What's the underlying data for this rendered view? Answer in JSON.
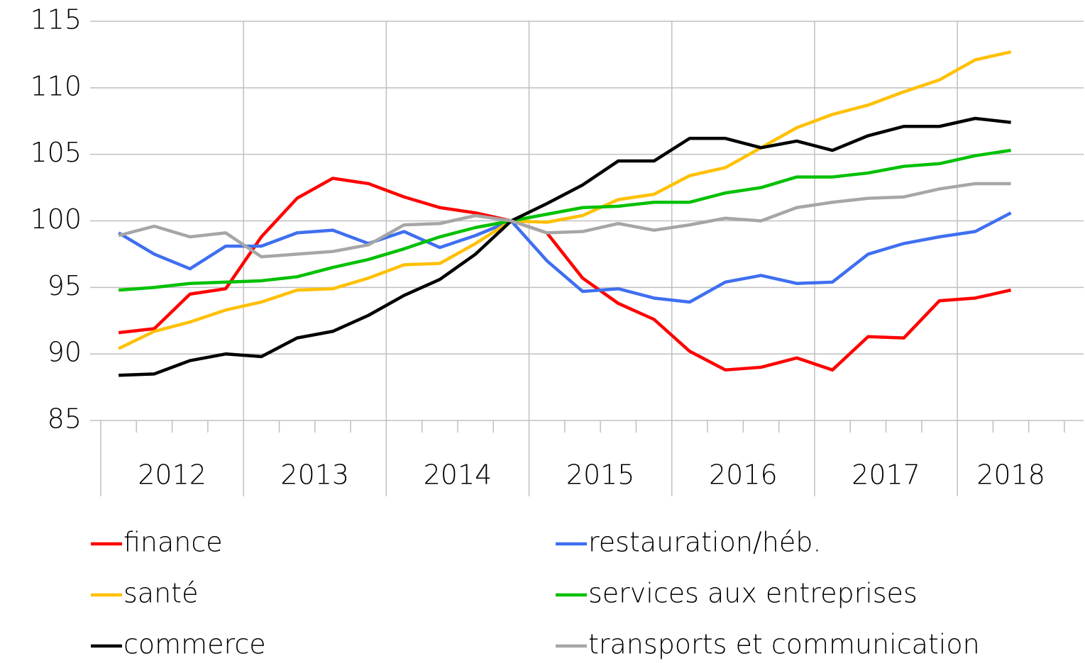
{
  "chart_data": {
    "type": "line",
    "categories": [
      "2012",
      null,
      null,
      null,
      "2013",
      null,
      null,
      null,
      "2014",
      null,
      null,
      null,
      "2015",
      null,
      null,
      null,
      "2016",
      null,
      null,
      null,
      "2017",
      null,
      null,
      null,
      "2018",
      null,
      null
    ],
    "ylim": [
      85,
      115
    ],
    "yticks": [
      85,
      90,
      95,
      100,
      105,
      110,
      115
    ],
    "grid": true,
    "series": [
      {
        "name": "finance",
        "color": "#ff0000",
        "values": [
          91.6,
          91.9,
          94.5,
          94.9,
          98.8,
          101.7,
          103.2,
          102.8,
          101.8,
          101.0,
          100.6,
          100,
          99.1,
          95.7,
          93.8,
          92.6,
          90.2,
          88.8,
          89.0,
          89.7,
          88.8,
          91.3,
          91.2,
          94.0,
          94.2,
          94.8,
          null
        ]
      },
      {
        "name": "restauration/héb.",
        "color": "#3f6ff0",
        "values": [
          99.1,
          97.5,
          96.4,
          98.1,
          98.1,
          99.1,
          99.3,
          98.3,
          99.2,
          98.0,
          98.9,
          100,
          97.0,
          94.7,
          94.9,
          94.2,
          93.9,
          95.4,
          95.9,
          95.3,
          95.4,
          97.5,
          98.3,
          98.8,
          99.2,
          100.6,
          null
        ]
      },
      {
        "name": "santé",
        "color": "#ffc000",
        "values": [
          90.4,
          91.7,
          92.4,
          93.3,
          93.9,
          94.8,
          94.9,
          95.7,
          96.7,
          96.8,
          98.3,
          100,
          99.9,
          100.4,
          101.6,
          102.0,
          103.4,
          104.0,
          105.5,
          107.0,
          108.0,
          108.7,
          109.7,
          110.6,
          112.1,
          112.7,
          null
        ]
      },
      {
        "name": "services aux entreprises",
        "color": "#00c000",
        "values": [
          94.8,
          95.0,
          95.3,
          95.4,
          95.5,
          95.8,
          96.5,
          97.1,
          97.9,
          98.8,
          99.5,
          100,
          100.5,
          101.0,
          101.1,
          101.4,
          101.4,
          102.1,
          102.5,
          103.3,
          103.3,
          103.6,
          104.1,
          104.3,
          104.9,
          105.3,
          null
        ]
      },
      {
        "name": "commerce",
        "color": "#000000",
        "values": [
          88.4,
          88.5,
          89.5,
          90.0,
          89.8,
          91.2,
          91.7,
          92.9,
          94.4,
          95.6,
          97.5,
          100,
          101.3,
          102.7,
          104.5,
          104.5,
          106.2,
          106.2,
          105.5,
          106.0,
          105.3,
          106.4,
          107.1,
          107.1,
          107.7,
          107.4,
          null
        ]
      },
      {
        "name": "transports et communication",
        "color": "#a6a6a6",
        "values": [
          98.9,
          99.6,
          98.8,
          99.1,
          97.3,
          97.5,
          97.7,
          98.2,
          99.7,
          99.8,
          100.4,
          100,
          99.1,
          99.2,
          99.8,
          99.3,
          99.7,
          100.2,
          100.0,
          101.0,
          101.4,
          101.7,
          101.8,
          102.4,
          102.8,
          102.8,
          null
        ]
      }
    ]
  }
}
